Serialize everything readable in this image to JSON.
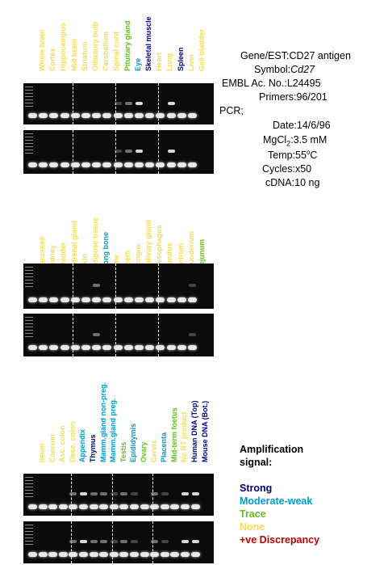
{
  "panels": [
    {
      "lanes": [
        "Whole brain",
        "Cortex",
        "Hippocampus",
        "Mid brain",
        "Striatum",
        "Olfactory bulb",
        "Cerebellum",
        "Spinal cord",
        "Pituitary gland",
        "Eye",
        "Skeletal muscle",
        "Heart",
        "Lung",
        "Spleen",
        "Liver",
        "Gall bladder"
      ],
      "levels": [
        "none",
        "none",
        "none",
        "none",
        "none",
        "none",
        "none",
        "none",
        "trace",
        "moderate",
        "strong",
        "none",
        "none",
        "strong",
        "none",
        "none"
      ]
    },
    {
      "lanes": [
        "Pancreas",
        "Kidney",
        "Bladder",
        "Adrenal gland",
        "Skin",
        "Adipose tissue",
        "Long bone",
        "Paw",
        "Teeth",
        "Tongue",
        "Salivary gland",
        "Oesophagus",
        "Fundus",
        "Antrum",
        "Duodenum",
        "Jejunum"
      ],
      "levels": [
        "none",
        "none",
        "none",
        "none",
        "none",
        "none",
        "moderate",
        "none",
        "none",
        "none",
        "none",
        "none",
        "none",
        "none",
        "none",
        "trace"
      ]
    },
    {
      "lanes": [
        "Ileum",
        "Caecum",
        "Asc. colon",
        "Desc. colon",
        "Appendix",
        "Thymus",
        "Mamm.gland non-preg.",
        "Mamm.gland preg.",
        "Testis",
        "Epididymis",
        "Ovary",
        "Cervix",
        "Placenta",
        "Mid-term foetus",
        "No RT product",
        "Human DNA (Top)",
        "Mouse DNA (Bot.)"
      ],
      "levels": [
        "none",
        "none",
        "none",
        "none",
        "moderate",
        "strong",
        "moderate",
        "moderate",
        "trace",
        "moderate",
        "trace",
        "none",
        "moderate",
        "trace",
        "none",
        "strong",
        "strong"
      ]
    }
  ],
  "info": {
    "rows": [
      {
        "key": "Gene/EST:",
        "value": "CD27 antigen"
      },
      {
        "key": "Symbol:",
        "value": "Cd27"
      },
      {
        "key": "EMBL Ac. No.:",
        "value": "L24495"
      },
      {
        "key": "Primers:",
        "value": "96/201"
      },
      {
        "key": "PCR;",
        "value": ""
      },
      {
        "key": "Date:",
        "value": "14/6/96"
      },
      {
        "key": "MgCl2:",
        "value": "3.5 mM"
      },
      {
        "key": "Temp:",
        "value": "55oC"
      },
      {
        "key": "Cycles:",
        "value": "x50"
      },
      {
        "key": "cDNA:",
        "value": "10 ng"
      }
    ]
  },
  "legend": {
    "title1": "Amplification",
    "title2": "signal:",
    "strong": "Strong",
    "moderate": "Moderate-weak",
    "trace": "Trace",
    "none": "None",
    "discrepancy": "+ve Discrepancy"
  },
  "colors": {
    "strong": "#00007f",
    "moderate": "#0099cc",
    "trace": "#66bb22",
    "none": "#f2dc5a",
    "discrepancy": "#bb0000"
  }
}
